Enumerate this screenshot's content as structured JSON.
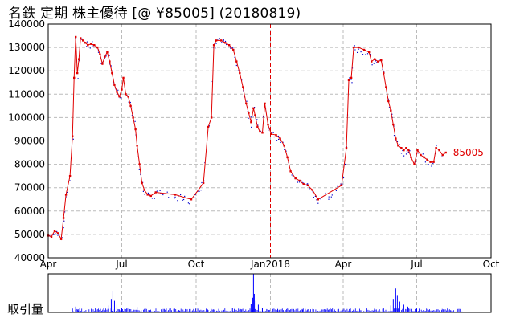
{
  "title": "名鉄 定期 株主優待  [@ ¥85005] (20180819)",
  "volume_label": "取引量",
  "colors": {
    "price_line": "#e00000",
    "marker_line": "#e00000",
    "scatter": "#0000cc",
    "volume": "#0000ff",
    "grid": "#bbbbbb",
    "frame": "#000000"
  },
  "chart_data": [
    {
      "type": "line",
      "title": "名鉄 定期 株主優待",
      "current_price_label": "85005",
      "xlabel": "",
      "ylabel": "",
      "ylim": [
        40000,
        140000
      ],
      "yticks": [
        40000,
        50000,
        60000,
        70000,
        80000,
        90000,
        100000,
        110000,
        120000,
        130000,
        140000
      ],
      "x_domain": [
        "2017-04-01",
        "2018-10-01"
      ],
      "xticks": [
        {
          "date": "2017-04-01",
          "label": "Apr"
        },
        {
          "date": "2017-07-01",
          "label": "Jul"
        },
        {
          "date": "2017-10-01",
          "label": "Oct"
        },
        {
          "date": "2018-01-01",
          "label": "Jan2018"
        },
        {
          "date": "2018-04-01",
          "label": "Apr"
        },
        {
          "date": "2018-07-01",
          "label": "Jul"
        },
        {
          "date": "2018-10-01",
          "label": "Oct"
        }
      ],
      "marker_line_date": "2018-01-01",
      "grid": true,
      "series": [
        {
          "points": [
            [
              "2017-04-01",
              49500
            ],
            [
              "2017-04-05",
              49000
            ],
            [
              "2017-04-09",
              51500
            ],
            [
              "2017-04-13",
              50500
            ],
            [
              "2017-04-17",
              48000
            ],
            [
              "2017-04-20",
              57000
            ],
            [
              "2017-04-23",
              67000
            ],
            [
              "2017-04-28",
              75000
            ],
            [
              "2017-05-01",
              92000
            ],
            [
              "2017-05-03",
              117000
            ],
            [
              "2017-05-05",
              134500
            ],
            [
              "2017-05-07",
              119000
            ],
            [
              "2017-05-09",
              125000
            ],
            [
              "2017-05-11",
              134000
            ],
            [
              "2017-05-14",
              133000
            ],
            [
              "2017-05-17",
              132000
            ],
            [
              "2017-05-20",
              131000
            ],
            [
              "2017-05-24",
              131500
            ],
            [
              "2017-05-28",
              131000
            ],
            [
              "2017-06-01",
              130000
            ],
            [
              "2017-06-04",
              127000
            ],
            [
              "2017-06-07",
              123000
            ],
            [
              "2017-06-10",
              126000
            ],
            [
              "2017-06-13",
              128000
            ],
            [
              "2017-06-16",
              124000
            ],
            [
              "2017-06-19",
              119000
            ],
            [
              "2017-06-22",
              114000
            ],
            [
              "2017-06-25",
              111000
            ],
            [
              "2017-06-28",
              109000
            ],
            [
              "2017-07-01",
              112000
            ],
            [
              "2017-07-03",
              117000
            ],
            [
              "2017-07-06",
              110000
            ],
            [
              "2017-07-09",
              109000
            ],
            [
              "2017-07-12",
              105000
            ],
            [
              "2017-07-15",
              100000
            ],
            [
              "2017-07-18",
              95000
            ],
            [
              "2017-07-20",
              88000
            ],
            [
              "2017-07-23",
              80000
            ],
            [
              "2017-07-26",
              72000
            ],
            [
              "2017-07-29",
              69000
            ],
            [
              "2017-08-02",
              67000
            ],
            [
              "2017-08-06",
              66500
            ],
            [
              "2017-08-12",
              68000
            ],
            [
              "2017-09-05",
              67000
            ],
            [
              "2017-09-25",
              65000
            ],
            [
              "2017-10-10",
              72000
            ],
            [
              "2017-10-16",
              96000
            ],
            [
              "2017-10-20",
              100000
            ],
            [
              "2017-10-23",
              131000
            ],
            [
              "2017-10-26",
              133000
            ],
            [
              "2017-11-01",
              133000
            ],
            [
              "2017-11-06",
              132000
            ],
            [
              "2017-11-11",
              131000
            ],
            [
              "2017-11-16",
              129000
            ],
            [
              "2017-11-20",
              124000
            ],
            [
              "2017-11-24",
              119000
            ],
            [
              "2017-11-28",
              113000
            ],
            [
              "2017-12-02",
              106000
            ],
            [
              "2017-12-05",
              102000
            ],
            [
              "2017-12-08",
              98000
            ],
            [
              "2017-12-11",
              104000
            ],
            [
              "2017-12-13",
              101000
            ],
            [
              "2017-12-16",
              96000
            ],
            [
              "2017-12-19",
              94000
            ],
            [
              "2017-12-22",
              93500
            ],
            [
              "2017-12-25",
              106000
            ],
            [
              "2017-12-29",
              97000
            ],
            [
              "2018-01-02",
              93000
            ],
            [
              "2018-01-08",
              92500
            ],
            [
              "2018-01-13",
              91000
            ],
            [
              "2018-01-18",
              88000
            ],
            [
              "2018-01-22",
              83000
            ],
            [
              "2018-01-26",
              77000
            ],
            [
              "2018-02-01",
              74000
            ],
            [
              "2018-02-06",
              73000
            ],
            [
              "2018-02-11",
              71500
            ],
            [
              "2018-02-16",
              71000
            ],
            [
              "2018-02-22",
              69000
            ],
            [
              "2018-03-01",
              65000
            ],
            [
              "2018-03-30",
              71000
            ],
            [
              "2018-04-05",
              87000
            ],
            [
              "2018-04-08",
              116000
            ],
            [
              "2018-04-11",
              117000
            ],
            [
              "2018-04-14",
              130000
            ],
            [
              "2018-04-20",
              130000
            ],
            [
              "2018-04-27",
              129000
            ],
            [
              "2018-05-03",
              128000
            ],
            [
              "2018-05-06",
              124000
            ],
            [
              "2018-05-10",
              125000
            ],
            [
              "2018-05-14",
              124000
            ],
            [
              "2018-05-18",
              124500
            ],
            [
              "2018-05-21",
              119000
            ],
            [
              "2018-05-24",
              113000
            ],
            [
              "2018-05-27",
              107000
            ],
            [
              "2018-05-30",
              103000
            ],
            [
              "2018-06-02",
              97000
            ],
            [
              "2018-06-05",
              91000
            ],
            [
              "2018-06-08",
              88000
            ],
            [
              "2018-06-12",
              87000
            ],
            [
              "2018-06-15",
              86000
            ],
            [
              "2018-06-18",
              87000
            ],
            [
              "2018-06-21",
              86000
            ],
            [
              "2018-06-24",
              83000
            ],
            [
              "2018-06-28",
              80000
            ],
            [
              "2018-07-02",
              86000
            ],
            [
              "2018-07-06",
              84000
            ],
            [
              "2018-07-10",
              83000
            ],
            [
              "2018-07-14",
              82000
            ],
            [
              "2018-07-18",
              81000
            ],
            [
              "2018-07-22",
              81000
            ],
            [
              "2018-07-25",
              87000
            ],
            [
              "2018-07-29",
              86000
            ],
            [
              "2018-08-02",
              84000
            ],
            [
              "2018-08-06",
              85005
            ]
          ]
        }
      ],
      "volume": {
        "ylim": [
          0,
          100
        ],
        "spikes": [
          {
            "date": "2017-05-01",
            "value": 10
          },
          {
            "date": "2017-05-05",
            "value": 15
          },
          {
            "date": "2017-05-08",
            "value": 8
          },
          {
            "date": "2017-06-15",
            "value": 18
          },
          {
            "date": "2017-06-18",
            "value": 35
          },
          {
            "date": "2017-06-20",
            "value": 55
          },
          {
            "date": "2017-06-22",
            "value": 30
          },
          {
            "date": "2017-06-25",
            "value": 20
          },
          {
            "date": "2017-07-01",
            "value": 12
          },
          {
            "date": "2017-07-10",
            "value": 10
          },
          {
            "date": "2017-07-20",
            "value": 14
          },
          {
            "date": "2017-08-05",
            "value": 6
          },
          {
            "date": "2017-09-10",
            "value": 5
          },
          {
            "date": "2017-10-15",
            "value": 8
          },
          {
            "date": "2017-11-15",
            "value": 12
          },
          {
            "date": "2017-12-08",
            "value": 22
          },
          {
            "date": "2017-12-10",
            "value": 38
          },
          {
            "date": "2017-12-11",
            "value": 100
          },
          {
            "date": "2017-12-12",
            "value": 48
          },
          {
            "date": "2017-12-14",
            "value": 30
          },
          {
            "date": "2017-12-17",
            "value": 20
          },
          {
            "date": "2017-12-22",
            "value": 12
          },
          {
            "date": "2018-01-10",
            "value": 9
          },
          {
            "date": "2018-02-10",
            "value": 7
          },
          {
            "date": "2018-03-15",
            "value": 8
          },
          {
            "date": "2018-04-10",
            "value": 10
          },
          {
            "date": "2018-05-10",
            "value": 12
          },
          {
            "date": "2018-05-30",
            "value": 18
          },
          {
            "date": "2018-06-02",
            "value": 35
          },
          {
            "date": "2018-06-05",
            "value": 62
          },
          {
            "date": "2018-06-07",
            "value": 45
          },
          {
            "date": "2018-06-10",
            "value": 28
          },
          {
            "date": "2018-06-15",
            "value": 20
          },
          {
            "date": "2018-06-20",
            "value": 15
          },
          {
            "date": "2018-07-01",
            "value": 10
          },
          {
            "date": "2018-07-15",
            "value": 8
          },
          {
            "date": "2018-08-01",
            "value": 6
          }
        ]
      }
    }
  ]
}
